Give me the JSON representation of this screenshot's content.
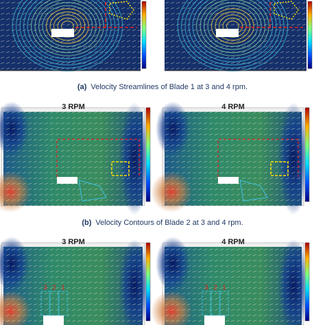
{
  "rows": [
    {
      "caption": {
        "label": "(a)",
        "text": "Velocity Streamlines of Blade 1 at 3 and 4 rpm."
      }
    },
    {
      "titles": [
        "3 RPM",
        "4 RPM"
      ],
      "caption": {
        "label": "(b)",
        "text": "Velocity Contours of Blade 2 at 3 and 4 rpm."
      }
    },
    {
      "titles": [
        "3 RPM",
        "4 RPM"
      ],
      "markers": [
        "3",
        "2",
        "1"
      ]
    }
  ]
}
